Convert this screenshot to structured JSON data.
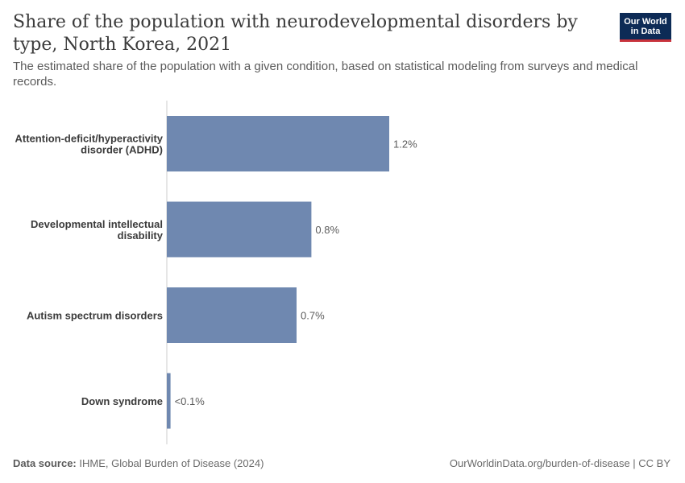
{
  "header": {
    "title": "Share of the population with neurodevelopmental disorders by type, North Korea, 2021",
    "subtitle": "The estimated share of the population with a given condition, based on statistical modeling from surveys and medical records."
  },
  "logo": {
    "line1": "Our World",
    "line2": "in Data"
  },
  "footer": {
    "source_label": "Data source:",
    "source_text": "IHME, Global Burden of Disease (2024)",
    "url_text": "OurWorldinData.org/burden-of-disease | CC BY"
  },
  "colors": {
    "bar": "#6f88b0",
    "axis": "#cccccc",
    "label": "#3b3b3b",
    "value": "#5b5b5b"
  },
  "chart_data": {
    "type": "bar",
    "orientation": "horizontal",
    "categories": [
      [
        "Attention-deficit/hyperactivity",
        "disorder (ADHD)"
      ],
      [
        "Developmental intellectual",
        "disability"
      ],
      [
        "Autism spectrum disorders"
      ],
      [
        "Down syndrome"
      ]
    ],
    "values": [
      1.2,
      0.78,
      0.7,
      0.02
    ],
    "value_labels": [
      "1.2%",
      "0.8%",
      "0.7%",
      "<0.1%"
    ],
    "xlim": [
      0,
      1.2
    ],
    "unit": "%",
    "grid": false
  }
}
